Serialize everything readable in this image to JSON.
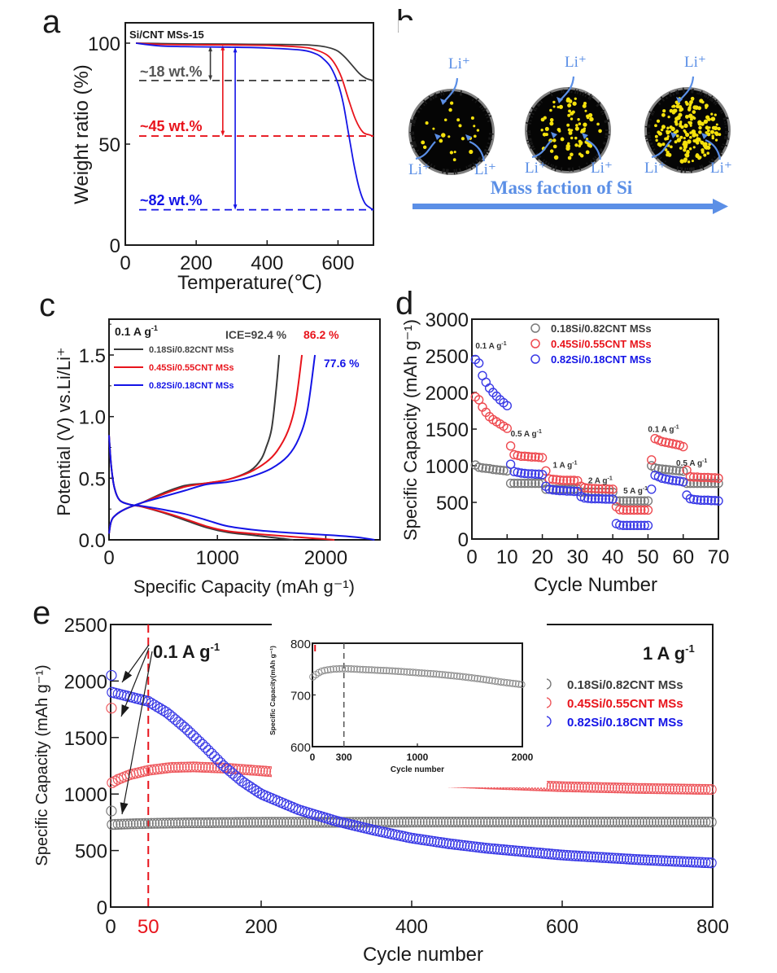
{
  "colors": {
    "gray": "#3a3a3a",
    "gray_marker": "#7a7a7a",
    "red": "#e8141c",
    "red_marker": "#ee5a5f",
    "blue": "#1414e6",
    "blue_marker": "#3a3ae6",
    "li_blue": "#5b8fe6",
    "axis": "#1a1a1a"
  },
  "panels": {
    "a": "a",
    "b": "b",
    "c": "c",
    "d": "d",
    "e": "e"
  },
  "chart_data": [
    {
      "id": "a",
      "type": "line",
      "title": "Si/CNT MSs-15",
      "xlabel": "Temperature(℃)",
      "ylabel": "Weight ratio (%)",
      "xlim": [
        0,
        700
      ],
      "ylim": [
        0,
        110
      ],
      "xticks": [
        0,
        200,
        400,
        600
      ],
      "yticks": [
        0,
        50,
        100
      ],
      "series": [
        {
          "name": "0.18Si/0.82CNT MSs",
          "color": "#3a3a3a",
          "x": [
            30,
            100,
            200,
            300,
            400,
            500,
            550,
            580,
            600,
            620,
            640,
            660,
            680,
            700
          ],
          "y": [
            100,
            99.8,
            99.6,
            99.5,
            99.4,
            99.2,
            98.6,
            97.5,
            96,
            93,
            89,
            85,
            82.5,
            81.5
          ]
        },
        {
          "name": "0.45Si/0.55CNT MSs",
          "color": "#e8141c",
          "x": [
            30,
            100,
            200,
            300,
            400,
            500,
            540,
            570,
            590,
            610,
            630,
            650,
            670,
            690,
            700
          ],
          "y": [
            100,
            99.4,
            99.2,
            99.1,
            98.9,
            98,
            96.5,
            94,
            90,
            83,
            72,
            62,
            56,
            54.5,
            54
          ]
        },
        {
          "name": "0.82Si/0.18CNT MSs",
          "color": "#1414e6",
          "x": [
            30,
            100,
            200,
            300,
            400,
            500,
            540,
            560,
            580,
            600,
            615,
            630,
            645,
            660,
            675,
            690,
            700
          ],
          "y": [
            100,
            98.6,
            98.2,
            98,
            97.6,
            96.5,
            94.5,
            92,
            88,
            80,
            70,
            55,
            40,
            28,
            21,
            18.5,
            17.5
          ]
        }
      ],
      "reference_lines": [
        {
          "y": 81.5,
          "color": "#3a3a3a",
          "label": "~18 wt.%"
        },
        {
          "y": 54,
          "color": "#e8141c",
          "label": "~45 wt.%"
        },
        {
          "y": 17.5,
          "color": "#1414e6",
          "label": "~82 wt.%"
        }
      ],
      "arrows": [
        {
          "x": 240,
          "y_from": 98.5,
          "y_to": 81.5,
          "color": "#3a3a3a"
        },
        {
          "x": 275,
          "y_from": 99,
          "y_to": 54,
          "color": "#e8141c"
        },
        {
          "x": 310,
          "y_from": 98,
          "y_to": 17.5,
          "color": "#1414e6"
        }
      ]
    },
    {
      "id": "c",
      "type": "line",
      "xlabel": "Specific Capacity (mAh g⁻¹)",
      "ylabel": "Potential (V) vs.Li/Li⁺",
      "xlim": [
        0,
        2500
      ],
      "ylim": [
        0,
        1.8
      ],
      "xticks": [
        0,
        1000,
        2000
      ],
      "yticks": [
        0.0,
        0.5,
        1.0,
        1.5
      ],
      "ytick_labels": [
        "0.0",
        "0.5",
        "1.0",
        "1.5"
      ],
      "annotation_rate": "0.1 A g⁻¹",
      "ice_labels": [
        {
          "text": "ICE=92.4 %",
          "color": "#3a3a3a"
        },
        {
          "text": "86.2 %",
          "color": "#e8141c"
        },
        {
          "text": "77.6 %",
          "color": "#1414e6"
        }
      ],
      "series": [
        {
          "name": "0.18Si/0.82CNT MSs",
          "color": "#3a3a3a",
          "discharge": {
            "x": [
              0,
              20,
              50,
              100,
              200,
              300,
              500,
              700,
              900,
              1100,
              1300,
              1500,
              1600,
              1700
            ],
            "y": [
              0.85,
              0.6,
              0.42,
              0.32,
              0.285,
              0.27,
              0.22,
              0.16,
              0.1,
              0.06,
              0.04,
              0.02,
              0.01,
              0.0
            ]
          },
          "charge": {
            "x": [
              0,
              20,
              60,
              150,
              300,
              500,
              700,
              900,
              1100,
              1300,
              1400,
              1450,
              1500,
              1540,
              1570
            ],
            "y": [
              0.05,
              0.15,
              0.2,
              0.25,
              0.3,
              0.38,
              0.44,
              0.46,
              0.49,
              0.56,
              0.65,
              0.75,
              0.9,
              1.2,
              1.5
            ]
          }
        },
        {
          "name": "0.45Si/0.55CNT MSs",
          "color": "#e8141c",
          "discharge": {
            "x": [
              0,
              20,
              50,
              100,
              200,
              300,
              500,
              700,
              900,
              1100,
              1400,
              1700,
              1900,
              2080
            ],
            "y": [
              0.85,
              0.6,
              0.42,
              0.32,
              0.285,
              0.27,
              0.225,
              0.17,
              0.11,
              0.07,
              0.045,
              0.025,
              0.012,
              0.0
            ]
          },
          "charge": {
            "x": [
              0,
              20,
              60,
              150,
              300,
              500,
              700,
              900,
              1100,
              1300,
              1450,
              1550,
              1650,
              1720,
              1780
            ],
            "y": [
              0.05,
              0.15,
              0.2,
              0.25,
              0.3,
              0.37,
              0.43,
              0.46,
              0.49,
              0.55,
              0.63,
              0.72,
              0.88,
              1.1,
              1.5
            ]
          }
        },
        {
          "name": "0.82Si/0.18CNT MSs",
          "color": "#1414e6",
          "discharge": {
            "x": [
              0,
              20,
              50,
              100,
              200,
              300,
              500,
              700,
              900,
              1100,
              1400,
              1800,
              2100,
              2300,
              2450
            ],
            "y": [
              0.85,
              0.6,
              0.42,
              0.32,
              0.285,
              0.275,
              0.245,
              0.21,
              0.16,
              0.11,
              0.075,
              0.05,
              0.035,
              0.02,
              0.0
            ]
          },
          "charge": {
            "x": [
              0,
              20,
              60,
              150,
              300,
              500,
              700,
              900,
              1100,
              1300,
              1500,
              1650,
              1750,
              1830,
              1900
            ],
            "y": [
              0.05,
              0.15,
              0.2,
              0.25,
              0.3,
              0.35,
              0.4,
              0.45,
              0.47,
              0.51,
              0.58,
              0.68,
              0.82,
              1.05,
              1.5
            ]
          }
        }
      ]
    },
    {
      "id": "d",
      "type": "scatter",
      "xlabel": "Cycle Number",
      "ylabel": "Specific Capacity (mAh g⁻¹)",
      "xlim": [
        0,
        70
      ],
      "ylim": [
        0,
        3000
      ],
      "xticks": [
        0,
        10,
        20,
        30,
        40,
        50,
        60,
        70
      ],
      "yticks": [
        0,
        500,
        1000,
        1500,
        2000,
        2500,
        3000
      ],
      "legend_position": "top-center",
      "rate_labels": [
        {
          "text": "0.1 A g⁻¹",
          "x": 1,
          "y": 2600
        },
        {
          "text": "0.5 A g⁻¹",
          "x": 11,
          "y": 1400
        },
        {
          "text": "1 A g⁻¹",
          "x": 23,
          "y": 970
        },
        {
          "text": "2 A g⁻¹",
          "x": 33,
          "y": 760
        },
        {
          "text": "5 A g⁻¹",
          "x": 43,
          "y": 620
        },
        {
          "text": "0.1 A g⁻¹",
          "x": 50,
          "y": 1460
        },
        {
          "text": "0.5 A g⁻¹",
          "x": 58,
          "y": 1000
        }
      ],
      "series": [
        {
          "name": "0.18Si/0.82CNT MSs",
          "color": "#7a7a7a",
          "text_color": "#3a3a3a",
          "y": [
            1010,
            980,
            970,
            965,
            960,
            950,
            945,
            940,
            935,
            930,
            760,
            760,
            760,
            760,
            760,
            760,
            760,
            760,
            760,
            760,
            680,
            680,
            680,
            680,
            680,
            680,
            680,
            680,
            680,
            680,
            640,
            640,
            640,
            640,
            640,
            640,
            640,
            640,
            640,
            640,
            520,
            520,
            520,
            520,
            520,
            520,
            520,
            520,
            520,
            520,
            1000,
            970,
            960,
            955,
            950,
            945,
            940,
            935,
            930,
            925,
            760,
            760,
            760,
            760,
            760,
            760,
            760,
            760,
            760,
            760
          ]
        },
        {
          "name": "0.45Si/0.55CNT MSs",
          "color": "#ee4a50",
          "text_color": "#e8141c",
          "y": [
            1940,
            1900,
            1800,
            1730,
            1670,
            1630,
            1600,
            1570,
            1540,
            1510,
            1270,
            1150,
            1140,
            1130,
            1130,
            1125,
            1120,
            1120,
            1115,
            1110,
            930,
            820,
            815,
            810,
            805,
            800,
            800,
            800,
            800,
            795,
            720,
            700,
            695,
            690,
            690,
            685,
            685,
            685,
            680,
            680,
            440,
            400,
            395,
            395,
            395,
            395,
            395,
            395,
            395,
            395,
            1080,
            1370,
            1350,
            1330,
            1320,
            1310,
            1300,
            1290,
            1280,
            1260,
            940,
            850,
            845,
            845,
            840,
            840,
            840,
            835,
            835,
            830
          ]
        },
        {
          "name": "0.82Si/0.18CNT MSs",
          "color": "#3a3ae6",
          "text_color": "#1414e6",
          "y": [
            2450,
            2400,
            2230,
            2140,
            2060,
            2000,
            1950,
            1900,
            1860,
            1820,
            1020,
            920,
            910,
            900,
            895,
            890,
            890,
            885,
            885,
            880,
            720,
            680,
            670,
            665,
            660,
            660,
            655,
            655,
            650,
            650,
            580,
            560,
            555,
            550,
            550,
            550,
            548,
            545,
            545,
            545,
            210,
            190,
            185,
            185,
            185,
            185,
            185,
            185,
            185,
            185,
            680,
            870,
            850,
            830,
            820,
            810,
            800,
            795,
            790,
            780,
            600,
            550,
            540,
            535,
            530,
            530,
            530,
            525,
            525,
            520
          ]
        }
      ]
    },
    {
      "id": "e",
      "type": "scatter",
      "xlabel": "Cycle number",
      "ylabel": "Specific Capacity (mAh g⁻¹)",
      "xlim": [
        0,
        800
      ],
      "ylim": [
        0,
        2500
      ],
      "xticks": [
        0,
        200,
        400,
        600,
        800
      ],
      "yticks": [
        0,
        500,
        1000,
        1500,
        2000,
        2500
      ],
      "marker_line": {
        "x": 50,
        "label": "50",
        "color": "#e8141c"
      },
      "annotation_activation": "0.1 A g⁻¹",
      "annotation_rate": "1 A g⁻¹",
      "legend_position": "right",
      "first_cycle_points": [
        {
          "series": "0.18Si/0.82CNT MSs",
          "y": 850
        },
        {
          "series": "0.45Si/0.55CNT MSs",
          "y": 1760
        },
        {
          "series": "0.82Si/0.18CNT MSs",
          "y": 2050
        }
      ],
      "series": [
        {
          "name": "0.18Si/0.82CNT MSs",
          "color": "#7a7a7a",
          "text_color": "#3a3a3a",
          "x": [
            2,
            20,
            50,
            100,
            200,
            300,
            400,
            500,
            600,
            700,
            800
          ],
          "y": [
            730,
            735,
            740,
            745,
            750,
            750,
            752,
            752,
            752,
            752,
            752
          ]
        },
        {
          "name": "0.45Si/0.55CNT MSs",
          "color": "#ee5a5f",
          "text_color": "#e8141c",
          "x": [
            2,
            10,
            25,
            50,
            80,
            110,
            150,
            200,
            250,
            300,
            400,
            500,
            600,
            700,
            800
          ],
          "y": [
            1100,
            1130,
            1170,
            1210,
            1235,
            1240,
            1230,
            1205,
            1180,
            1160,
            1120,
            1090,
            1065,
            1050,
            1040
          ]
        },
        {
          "name": "0.82Si/0.18CNT MSs",
          "color": "#3a3ae6",
          "text_color": "#1414e6",
          "x": [
            2,
            20,
            50,
            75,
            100,
            125,
            150,
            175,
            200,
            250,
            300,
            350,
            400,
            450,
            500,
            600,
            700,
            800
          ],
          "y": [
            1900,
            1870,
            1820,
            1720,
            1580,
            1420,
            1250,
            1110,
            1000,
            860,
            760,
            680,
            610,
            560,
            520,
            460,
            420,
            390
          ]
        }
      ],
      "inset": {
        "type": "scatter",
        "xlabel": "Cycle number",
        "ylabel": "Specific Capacity(mAh g⁻¹)",
        "xlim": [
          0,
          2000
        ],
        "ylim": [
          600,
          800
        ],
        "xticks": [
          0,
          300,
          1000,
          2000
        ],
        "yticks": [
          600,
          700,
          800
        ],
        "dashed_line_x": 300,
        "series": {
          "name": "0.18Si/0.82CNT MSs",
          "color": "#8a8a8a",
          "x": [
            5,
            50,
            100,
            200,
            300,
            400,
            600,
            800,
            1000,
            1200,
            1400,
            1600,
            1800,
            2000
          ],
          "y": [
            735,
            742,
            747,
            750,
            751,
            750,
            748,
            746,
            743,
            740,
            736,
            731,
            725,
            720
          ]
        }
      }
    }
  ],
  "panel_b": {
    "li_label": "Li⁺",
    "caption": "Mass faction of Si",
    "spheres": [
      {
        "si_density": "low"
      },
      {
        "si_density": "medium"
      },
      {
        "si_density": "high"
      }
    ]
  }
}
